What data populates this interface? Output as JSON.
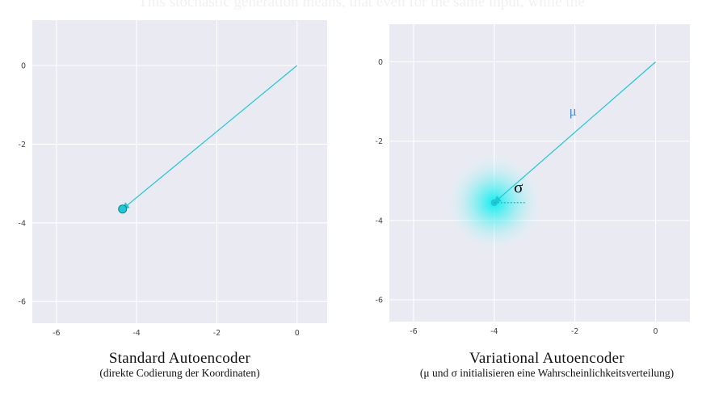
{
  "faded_text": "This stochastic generation means, that even for the same input, while the",
  "colors": {
    "plot_bg": "#eaeaf2",
    "grid": "#ffffff",
    "vector": "#1fc8d6",
    "mu_label": "#4a90d9",
    "text": "#111111"
  },
  "chart_data": [
    {
      "type": "scatter",
      "xlim": [
        -6.6,
        0.75
      ],
      "ylim": [
        -6.55,
        1.15
      ],
      "xticks": [
        -6,
        -4,
        -2,
        0
      ],
      "yticks": [
        0,
        -2,
        -4,
        -6
      ],
      "tick_labels_x": [
        "-6",
        "-4",
        "-2",
        "0"
      ],
      "tick_labels_y": [
        "0",
        "-2",
        "-4",
        "-6"
      ],
      "grid": true,
      "arrow": {
        "from": [
          0,
          0
        ],
        "to": [
          -4.35,
          -3.65
        ]
      },
      "point": [
        -4.35,
        -3.65
      ],
      "title": "Standard Autoencoder",
      "subtitle": "(direkte Codierung der Koordinaten)"
    },
    {
      "type": "scatter",
      "xlim": [
        -6.6,
        0.85
      ],
      "ylim": [
        -6.55,
        0.95
      ],
      "xticks": [
        -6,
        -4,
        -2,
        0
      ],
      "yticks": [
        0,
        -2,
        -4,
        -6
      ],
      "tick_labels_x": [
        "-6",
        "-4",
        "-2",
        "0"
      ],
      "tick_labels_y": [
        "0",
        "-2",
        "-4",
        "-6"
      ],
      "grid": true,
      "arrow": {
        "from": [
          0,
          0
        ],
        "to": [
          -4.0,
          -3.55
        ]
      },
      "point": [
        -4.0,
        -3.55
      ],
      "mu_label": "μ",
      "mu_label_at": [
        -2.05,
        -1.35
      ],
      "sigma_label": "σ",
      "sigma_label_at": [
        -3.4,
        -3.3
      ],
      "sigma_line_to": [
        -3.2,
        -3.55
      ],
      "glow_radius": 1.25,
      "title": "Variational Autoencoder",
      "subtitle": "(μ und σ initialisieren eine Wahrscheinlichkeitsverteilung)"
    }
  ]
}
